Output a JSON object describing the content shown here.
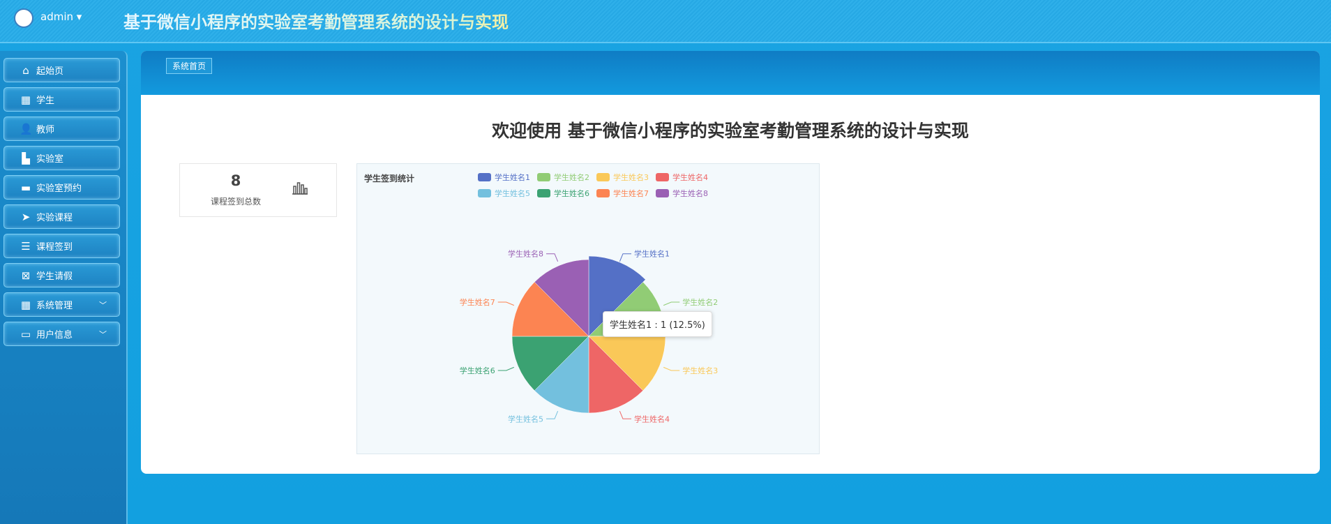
{
  "header": {
    "user": "admin",
    "title": "基于微信小程序的实验室考勤管理系统的设计与实现"
  },
  "sidebar": {
    "items": [
      {
        "label": "起始页",
        "icon": "home-icon"
      },
      {
        "label": "学生",
        "icon": "grid-icon"
      },
      {
        "label": "教师",
        "icon": "user-icon"
      },
      {
        "label": "实验室",
        "icon": "book-icon"
      },
      {
        "label": "实验室预约",
        "icon": "monitor-icon"
      },
      {
        "label": "实验课程",
        "icon": "send-icon"
      },
      {
        "label": "课程签到",
        "icon": "sliders-icon"
      },
      {
        "label": "学生请假",
        "icon": "clipboard-x-icon"
      },
      {
        "label": "系统管理",
        "icon": "grid-icon",
        "expandable": true
      },
      {
        "label": "用户信息",
        "icon": "card-icon",
        "expandable": true
      }
    ]
  },
  "breadcrumb": "系统首页",
  "welcome": "欢迎使用 基于微信小程序的实验室考勤管理系统的设计与实现",
  "stat": {
    "value": "8",
    "label": "课程签到总数",
    "icon": "bar-chart-icon"
  },
  "chart_data": {
    "type": "pie",
    "title": "学生签到统计",
    "legend": "top",
    "categories": [
      "学生姓名1",
      "学生姓名2",
      "学生姓名3",
      "学生姓名4",
      "学生姓名5",
      "学生姓名6",
      "学生姓名7",
      "学生姓名8"
    ],
    "values": [
      1,
      1,
      1,
      1,
      1,
      1,
      1,
      1
    ],
    "colors": [
      "#5470c6",
      "#91cc75",
      "#fac858",
      "#ee6666",
      "#73c0de",
      "#3ba272",
      "#fc8452",
      "#9a60b4"
    ],
    "tooltip": "学生姓名1 : 1 (12.5%)"
  }
}
